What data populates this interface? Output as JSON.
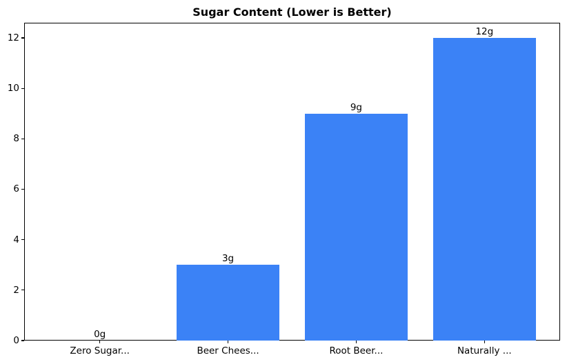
{
  "chart_data": {
    "type": "bar",
    "title": "Sugar Content (Lower is Better)",
    "categories": [
      "Zero Sugar...",
      "Beer Chees...",
      "Root Beer...",
      "Naturally ..."
    ],
    "values": [
      0,
      3,
      9,
      12
    ],
    "bar_value_labels": [
      "0g",
      "3g",
      "9g",
      "12g"
    ],
    "xlabel": "",
    "ylabel": "",
    "yticks": [
      0,
      2,
      4,
      6,
      8,
      10,
      12
    ],
    "ylim": [
      0,
      12.6
    ],
    "xlim": [
      -0.59,
      3.59
    ],
    "bar_width_data_units": 0.8,
    "grid": false,
    "legend_position": "none",
    "bar_color": "#3b82f6",
    "axis_color": "#000000",
    "text_color": "#000000",
    "background_color": "#ffffff"
  }
}
